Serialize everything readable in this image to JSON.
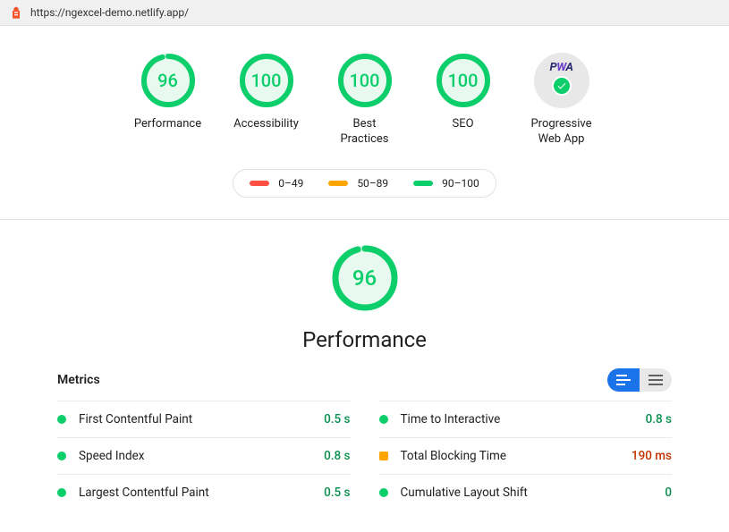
{
  "url": "https://ngexcel-demo.netlify.app/",
  "colors": {
    "pass": "#0cce6b",
    "pass_bg": "#e8faf0",
    "average": "#ffa400",
    "fail": "#ff4e42",
    "track": "#d8f5e5",
    "blue": "#1a73e8",
    "grey_bg": "#e8e8e8"
  },
  "gauge": {
    "radius": 27,
    "stroke_width": 6
  },
  "scores": [
    {
      "key": "performance",
      "label": "Performance",
      "value": 96,
      "color": "#0cce6b"
    },
    {
      "key": "accessibility",
      "label": "Accessibility",
      "value": 100,
      "color": "#0cce6b"
    },
    {
      "key": "best",
      "label": "Best\nPractices",
      "value": 100,
      "color": "#0cce6b"
    },
    {
      "key": "seo",
      "label": "SEO",
      "value": 100,
      "color": "#0cce6b"
    }
  ],
  "pwa": {
    "label": "Progressive\nWeb App",
    "passed": true
  },
  "legend": [
    {
      "range": "0–49",
      "color": "#ff4e42"
    },
    {
      "range": "50–89",
      "color": "#ffa400"
    },
    {
      "range": "90–100",
      "color": "#0cce6b"
    }
  ],
  "detail": {
    "category": "performance",
    "title": "Performance",
    "value": 96,
    "color": "#0cce6b",
    "metrics_heading": "Metrics",
    "metrics": [
      {
        "name": "First Contentful Paint",
        "value": "0.5 s",
        "status": "pass"
      },
      {
        "name": "Time to Interactive",
        "value": "0.8 s",
        "status": "pass"
      },
      {
        "name": "Speed Index",
        "value": "0.8 s",
        "status": "pass"
      },
      {
        "name": "Total Blocking Time",
        "value": "190 ms",
        "status": "average"
      },
      {
        "name": "Largest Contentful Paint",
        "value": "0.5 s",
        "status": "pass"
      },
      {
        "name": "Cumulative Layout Shift",
        "value": "0",
        "status": "pass"
      }
    ]
  }
}
